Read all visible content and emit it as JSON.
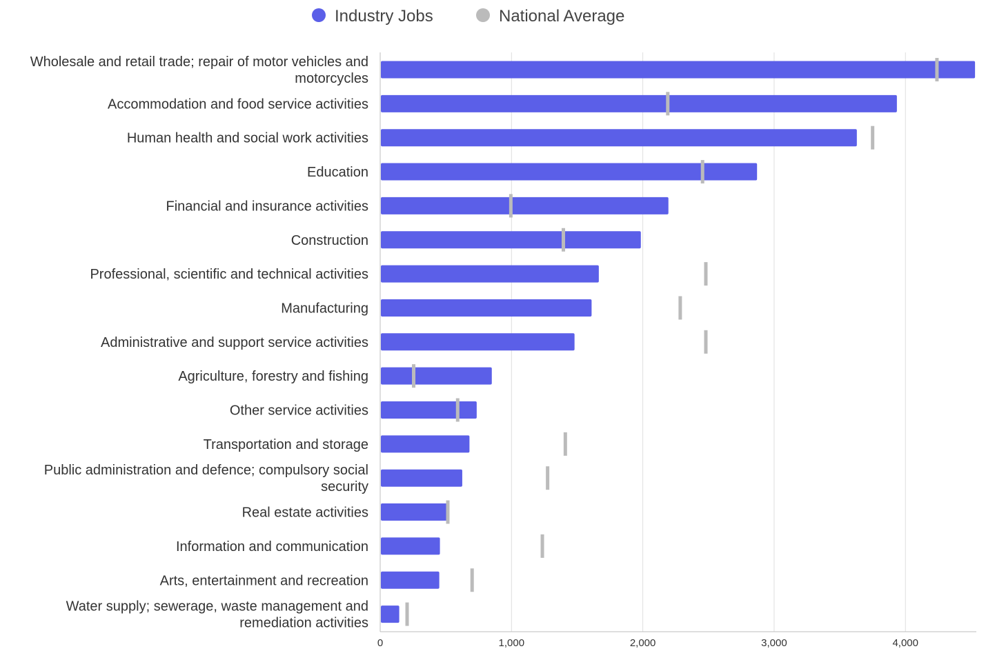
{
  "chart_data": {
    "type": "bar",
    "orientation": "horizontal",
    "title": "",
    "xlabel": "",
    "ylabel": "",
    "xlim": [
      0,
      4540
    ],
    "x_ticks": [
      0,
      1000,
      2000,
      3000,
      4000
    ],
    "x_tick_labels": [
      "0",
      "1,000",
      "2,000",
      "3,000",
      "4,000"
    ],
    "grid": true,
    "legend_position": "top-center",
    "categories": [
      [
        "Wholesale and retail trade; repair of motor vehicles and",
        "motorcycles"
      ],
      [
        "Accommodation and food service activities"
      ],
      [
        "Human health and social work activities"
      ],
      [
        "Education"
      ],
      [
        "Financial and insurance activities"
      ],
      [
        "Construction"
      ],
      [
        "Professional, scientific and technical activities"
      ],
      [
        "Manufacturing"
      ],
      [
        "Administrative and support service activities"
      ],
      [
        "Agriculture, forestry and fishing"
      ],
      [
        "Other service activities"
      ],
      [
        "Transportation and storage"
      ],
      [
        "Public administration and defence; compulsory social",
        "security"
      ],
      [
        "Real estate activities"
      ],
      [
        "Information and communication"
      ],
      [
        "Arts, entertainment and recreation"
      ],
      [
        "Water supply; sewerage, waste management and",
        "remediation activities"
      ]
    ],
    "series": [
      {
        "name": "Industry Jobs",
        "kind": "bar",
        "color": "#5b5fe8",
        "values": [
          4530,
          3935,
          3630,
          2870,
          2195,
          1985,
          1665,
          1610,
          1480,
          850,
          735,
          680,
          625,
          510,
          455,
          450,
          145
        ]
      },
      {
        "name": "National Average",
        "kind": "marker",
        "color": "#bbbbbb",
        "values": [
          4240,
          2190,
          3750,
          2455,
          995,
          1395,
          2480,
          2285,
          2480,
          255,
          590,
          1410,
          1275,
          515,
          1235,
          700,
          205
        ]
      }
    ]
  }
}
